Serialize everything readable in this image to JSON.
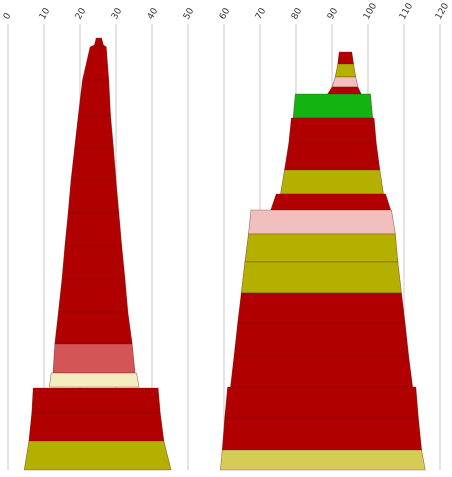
{
  "chart_data": {
    "type": "area",
    "title": "",
    "xlabel": "",
    "ylabel": "",
    "x_axis": {
      "ticks": [
        0,
        10,
        20,
        30,
        40,
        50,
        60,
        70,
        80,
        90,
        100,
        110,
        120
      ],
      "tick_labels": [
        "0",
        "10",
        "20",
        "30",
        "40",
        "50",
        "60",
        "70",
        "80",
        "90",
        "100",
        "110",
        "120"
      ],
      "range": [
        0,
        120
      ],
      "grid": true
    },
    "palette": {
      "dark_red": "#b00000",
      "salmon": "#d45555",
      "cream": "#f5ecbf",
      "olive": "#b3b000",
      "light_olive": "#d4cc55",
      "pink": "#f2bfbf",
      "green": "#12b412"
    },
    "shapes": [
      {
        "name": "left",
        "bands": [
          {
            "x_top": [
              24.5,
              26.0
            ],
            "x_bottom": [
              24.0,
              26.5
            ],
            "color": "dark_red"
          },
          {
            "x_top": [
              24.0,
              26.5
            ],
            "x_bottom": [
              22.8,
              27.3
            ],
            "color": "dark_red"
          },
          {
            "x_top": [
              22.8,
              27.3
            ],
            "x_bottom": [
              20.7,
              28.0
            ],
            "color": "dark_red"
          },
          {
            "x_top": [
              20.7,
              28.0
            ],
            "x_bottom": [
              19.5,
              28.5
            ],
            "color": "dark_red"
          },
          {
            "x_top": [
              19.5,
              28.5
            ],
            "x_bottom": [
              18.5,
              29.3
            ],
            "color": "dark_red"
          },
          {
            "x_top": [
              18.5,
              29.3
            ],
            "x_bottom": [
              17.5,
              30.0
            ],
            "color": "dark_red"
          },
          {
            "x_top": [
              17.5,
              30.0
            ],
            "x_bottom": [
              16.7,
              30.8
            ],
            "color": "dark_red"
          },
          {
            "x_top": [
              16.7,
              30.8
            ],
            "x_bottom": [
              15.8,
              31.6
            ],
            "color": "dark_red"
          },
          {
            "x_top": [
              15.8,
              31.6
            ],
            "x_bottom": [
              15.0,
              32.5
            ],
            "color": "dark_red"
          },
          {
            "x_top": [
              15.0,
              32.5
            ],
            "x_bottom": [
              14.0,
              33.3
            ],
            "color": "dark_red"
          },
          {
            "x_top": [
              14.0,
              33.3
            ],
            "x_bottom": [
              13.0,
              34.5
            ],
            "color": "dark_red"
          },
          {
            "x_top": [
              13.0,
              34.5
            ],
            "x_bottom": [
              12.5,
              35.3
            ],
            "color": "salmon"
          },
          {
            "x_top": [
              12.0,
              35.7
            ],
            "x_bottom": [
              11.5,
              36.4
            ],
            "color": "cream"
          },
          {
            "x_top": [
              7.0,
              41.7
            ],
            "x_bottom": [
              6.6,
              42.3
            ],
            "color": "dark_red"
          },
          {
            "x_top": [
              6.6,
              42.3
            ],
            "x_bottom": [
              5.8,
              43.3
            ],
            "color": "dark_red"
          },
          {
            "x_top": [
              5.8,
              43.3
            ],
            "x_bottom": [
              4.5,
              45.3
            ],
            "color": "olive"
          }
        ]
      },
      {
        "name": "right",
        "bands": [
          {
            "x_top": [
              92.0,
              95.5
            ],
            "x_bottom": [
              91.6,
              96.0
            ],
            "color": "dark_red"
          },
          {
            "x_top": [
              91.6,
              96.0
            ],
            "x_bottom": [
              90.9,
              96.6
            ],
            "color": "olive"
          },
          {
            "x_top": [
              90.9,
              96.6
            ],
            "x_bottom": [
              90.0,
              97.2
            ],
            "color": "pink"
          },
          {
            "x_top": [
              90.0,
              97.2
            ],
            "x_bottom": [
              88.8,
              98.1
            ],
            "color": "dark_red"
          },
          {
            "x_top": [
              79.8,
              100.7
            ],
            "x_bottom": [
              79.2,
              101.3
            ],
            "color": "green"
          },
          {
            "x_top": [
              78.7,
              101.7
            ],
            "x_bottom": [
              78.0,
              102.3
            ],
            "color": "dark_red"
          },
          {
            "x_top": [
              78.0,
              102.3
            ],
            "x_bottom": [
              76.8,
              103.3
            ],
            "color": "dark_red"
          },
          {
            "x_top": [
              76.8,
              103.3
            ],
            "x_bottom": [
              75.7,
              104.3
            ],
            "color": "olive"
          },
          {
            "x_top": [
              74.5,
              104.9
            ],
            "x_bottom": [
              73.0,
              106.3
            ],
            "color": "dark_red"
          },
          {
            "x_top": [
              67.5,
              106.5
            ],
            "x_bottom": [
              66.8,
              107.6
            ],
            "color": "pink"
          },
          {
            "x_top": [
              66.8,
              107.6
            ],
            "x_bottom": [
              65.8,
              108.3
            ],
            "color": "olive"
          },
          {
            "x_top": [
              65.8,
              108.3
            ],
            "x_bottom": [
              64.8,
              109.3
            ],
            "color": "olive"
          },
          {
            "x_top": [
              64.8,
              109.3
            ],
            "x_bottom": [
              63.8,
              110.3
            ],
            "color": "dark_red"
          },
          {
            "x_top": [
              63.8,
              110.3
            ],
            "x_bottom": [
              62.8,
              111.3
            ],
            "color": "dark_red"
          },
          {
            "x_top": [
              62.8,
              111.3
            ],
            "x_bottom": [
              61.8,
              112.4
            ],
            "color": "dark_red"
          },
          {
            "x_top": [
              61.0,
              113.3
            ],
            "x_bottom": [
              60.2,
              114.0
            ],
            "color": "dark_red"
          },
          {
            "x_top": [
              60.2,
              114.0
            ],
            "x_bottom": [
              59.5,
              114.9
            ],
            "color": "dark_red"
          },
          {
            "x_top": [
              59.5,
              114.9
            ],
            "x_bottom": [
              59.0,
              115.9
            ],
            "color": "light_olive"
          }
        ]
      }
    ]
  }
}
